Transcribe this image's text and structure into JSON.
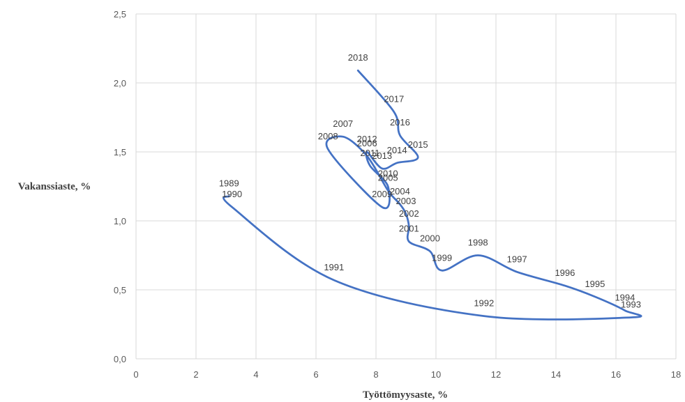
{
  "chart_data": {
    "type": "line",
    "xlabel": "Työttömyysaste, %",
    "ylabel": "Vakanssiaste, %",
    "xlim": [
      0,
      18
    ],
    "ylim": [
      0,
      2.5
    ],
    "x_ticks": [
      "0",
      "2",
      "4",
      "6",
      "8",
      "10",
      "12",
      "14",
      "16",
      "18"
    ],
    "y_ticks": [
      "0,0",
      "0,5",
      "1,0",
      "1,5",
      "2,0",
      "2,5"
    ],
    "grid": true,
    "line_color": "#4472c4",
    "series": [
      {
        "points": [
          {
            "label": "1989",
            "x": 3.1,
            "y": 1.18
          },
          {
            "label": "1990",
            "x": 3.2,
            "y": 1.1
          },
          {
            "label": "1991",
            "x": 6.6,
            "y": 0.57
          },
          {
            "label": "1992",
            "x": 11.6,
            "y": 0.31
          },
          {
            "label": "1993",
            "x": 16.5,
            "y": 0.3
          },
          {
            "label": "1994",
            "x": 16.3,
            "y": 0.35
          },
          {
            "label": "1995",
            "x": 15.3,
            "y": 0.45
          },
          {
            "label": "1996",
            "x": 14.3,
            "y": 0.53
          },
          {
            "label": "1997",
            "x": 12.7,
            "y": 0.63
          },
          {
            "label": "1998",
            "x": 11.4,
            "y": 0.75
          },
          {
            "label": "1999",
            "x": 10.2,
            "y": 0.64
          },
          {
            "label": "2000",
            "x": 9.8,
            "y": 0.78
          },
          {
            "label": "2001",
            "x": 9.1,
            "y": 0.85
          },
          {
            "label": "2002",
            "x": 9.1,
            "y": 0.96
          },
          {
            "label": "2003",
            "x": 9.0,
            "y": 1.05
          },
          {
            "label": "2004",
            "x": 8.8,
            "y": 1.12
          },
          {
            "label": "2005",
            "x": 8.4,
            "y": 1.22
          },
          {
            "label": "2006",
            "x": 7.7,
            "y": 1.47
          },
          {
            "label": "2007",
            "x": 6.9,
            "y": 1.61
          },
          {
            "label": "2008",
            "x": 6.4,
            "y": 1.52
          },
          {
            "label": "2009",
            "x": 8.2,
            "y": 1.1
          },
          {
            "label": "2010",
            "x": 8.4,
            "y": 1.25
          },
          {
            "label": "2011",
            "x": 7.8,
            "y": 1.4
          },
          {
            "label": "2012",
            "x": 7.7,
            "y": 1.5
          },
          {
            "label": "2013",
            "x": 8.2,
            "y": 1.38
          },
          {
            "label": "2014",
            "x": 8.7,
            "y": 1.42
          },
          {
            "label": "2015",
            "x": 9.4,
            "y": 1.46
          },
          {
            "label": "2016",
            "x": 8.8,
            "y": 1.62
          },
          {
            "label": "2017",
            "x": 8.6,
            "y": 1.79
          },
          {
            "label": "2018",
            "x": 7.4,
            "y": 2.09
          }
        ]
      }
    ]
  }
}
